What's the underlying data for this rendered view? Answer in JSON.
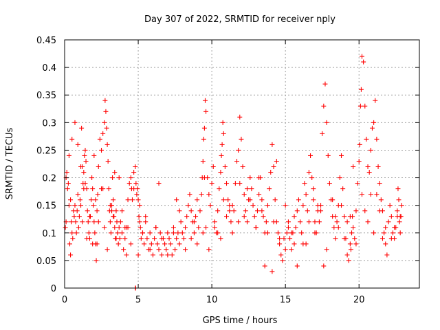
{
  "chart_data": {
    "type": "scatter",
    "title": "Day 307 of 2022, SRMTID for receiver nply",
    "xlabel": "GPS time / hours",
    "ylabel": "SRMTID / TECUs",
    "xlim": [
      0,
      24.1
    ],
    "ylim": [
      0,
      0.45
    ],
    "xticks": [
      0,
      5,
      10,
      15,
      20
    ],
    "xtick_labels": [
      "0",
      "5",
      "10",
      "15",
      "20"
    ],
    "yticks": [
      0,
      0.05,
      0.1,
      0.15,
      0.2,
      0.25,
      0.3,
      0.35,
      0.4,
      0.45
    ],
    "ytick_labels": [
      "0",
      "0.05",
      "0.1",
      "0.15",
      "0.2",
      "0.25",
      "0.3",
      "0.35",
      "0.4",
      "0.45"
    ],
    "grid": true,
    "marker": "+",
    "color": "#ff0000",
    "series": [
      {
        "name": "SRMTID",
        "x": [
          0.05,
          0.1,
          0.15,
          0.2,
          0.25,
          0.3,
          0.35,
          0.4,
          0.45,
          0.5,
          0.55,
          0.6,
          0.65,
          0.7,
          0.75,
          0.8,
          0.85,
          0.9,
          0.95,
          1.0,
          1.05,
          1.1,
          1.15,
          1.2,
          1.25,
          1.3,
          1.35,
          1.4,
          1.45,
          1.5,
          1.55,
          1.6,
          1.65,
          1.7,
          1.75,
          1.8,
          1.85,
          1.9,
          1.95,
          2.0,
          2.05,
          2.1,
          2.15,
          2.2,
          2.25,
          2.3,
          2.4,
          2.5,
          2.6,
          2.7,
          2.75,
          2.8,
          2.85,
          2.9,
          2.95,
          3.0,
          3.05,
          3.1,
          3.15,
          3.2,
          3.25,
          3.3,
          3.35,
          3.4,
          3.45,
          3.5,
          3.55,
          3.6,
          3.65,
          3.7,
          3.75,
          3.8,
          3.9,
          4.0,
          4.1,
          4.2,
          4.3,
          4.4,
          4.5,
          4.55,
          4.6,
          4.7,
          4.8,
          4.85,
          4.9,
          4.95,
          5.0,
          5.05,
          5.1,
          5.15,
          5.2,
          5.3,
          5.4,
          5.5,
          5.6,
          5.7,
          5.8,
          5.9,
          6.0,
          6.1,
          6.2,
          6.3,
          6.4,
          6.5,
          6.6,
          6.7,
          6.8,
          6.9,
          7.0,
          7.1,
          7.2,
          7.3,
          7.4,
          7.5,
          7.6,
          7.7,
          7.8,
          7.9,
          8.0,
          8.1,
          8.2,
          8.3,
          8.4,
          8.5,
          8.6,
          8.7,
          8.8,
          8.9,
          9.0,
          9.1,
          9.2,
          9.3,
          9.35,
          9.4,
          9.45,
          9.5,
          9.55,
          9.6,
          9.7,
          9.8,
          9.9,
          10.0,
          10.1,
          10.2,
          10.3,
          10.4,
          10.5,
          10.6,
          10.65,
          10.7,
          10.75,
          10.8,
          10.9,
          11.0,
          11.1,
          11.2,
          11.3,
          11.4,
          11.5,
          11.6,
          11.7,
          11.8,
          11.9,
          12.0,
          12.1,
          12.2,
          12.3,
          12.4,
          12.5,
          12.6,
          12.7,
          12.8,
          12.9,
          13.0,
          13.1,
          13.2,
          13.3,
          13.4,
          13.5,
          13.6,
          13.7,
          13.8,
          13.9,
          14.0,
          14.1,
          14.2,
          14.3,
          14.4,
          14.5,
          14.6,
          14.7,
          14.8,
          14.9,
          15.0,
          15.1,
          15.2,
          15.3,
          15.4,
          15.5,
          15.6,
          15.7,
          15.8,
          15.9,
          16.0,
          16.1,
          16.2,
          16.3,
          16.4,
          16.5,
          16.6,
          16.7,
          16.8,
          16.9,
          17.0,
          17.1,
          17.2,
          17.3,
          17.4,
          17.5,
          17.6,
          17.7,
          17.8,
          17.9,
          18.0,
          18.1,
          18.2,
          18.3,
          18.4,
          18.5,
          18.6,
          18.7,
          18.8,
          18.9,
          19.0,
          19.1,
          19.2,
          19.3,
          19.4,
          19.45,
          19.5,
          19.55,
          19.6,
          19.7,
          19.8,
          19.9,
          20.0,
          20.05,
          20.1,
          20.15,
          20.2,
          20.3,
          20.4,
          20.5,
          20.6,
          20.7,
          20.8,
          20.9,
          21.0,
          21.1,
          21.2,
          21.3,
          21.4,
          21.5,
          21.6,
          21.7,
          21.8,
          21.9,
          22.0,
          22.1,
          22.2,
          22.3,
          22.4,
          22.5,
          22.6,
          22.65,
          22.7,
          22.75,
          22.8,
          22.85,
          22.9,
          0.1,
          0.3,
          0.5,
          0.7,
          0.9,
          1.1,
          1.3,
          1.5,
          1.7,
          1.9,
          2.1,
          2.3,
          2.5,
          2.7,
          2.9,
          3.1,
          3.3,
          3.5,
          3.7,
          3.9,
          4.1,
          4.3,
          4.5,
          4.7,
          5.1,
          5.3,
          5.5,
          5.8,
          6.2,
          6.6,
          7.0,
          7.4,
          7.8,
          8.2,
          8.6,
          9.0,
          9.4,
          9.8,
          10.2,
          10.6,
          11.0,
          11.4,
          11.8,
          12.2,
          12.6,
          13.0,
          13.4,
          13.8,
          14.2,
          14.6,
          15.0,
          15.4,
          15.8,
          16.2,
          16.6,
          17.0,
          17.4,
          17.8,
          18.2,
          18.6,
          19.0,
          19.4,
          19.8,
          20.2,
          20.6,
          21.0,
          21.4,
          21.8,
          22.2,
          22.6,
          0.4,
          1.2,
          2.2,
          3.2,
          4.2,
          5.0,
          6.4,
          7.6,
          8.8,
          9.6,
          10.4,
          11.2,
          12.4,
          13.2,
          14.4,
          15.2,
          16.4,
          17.2,
          18.4,
          19.2,
          20.4,
          21.2,
          22.4,
          4.8,
          4.82,
          1.4,
          2.0,
          2.6,
          3.4,
          9.5,
          10.8,
          11.9,
          13.6,
          14.1,
          15.6,
          16.9,
          17.6,
          18.8,
          19.6,
          20.8,
          21.6,
          22.8
        ],
        "y": [
          0.11,
          0.12,
          0.21,
          0.18,
          0.19,
          0.15,
          0.08,
          0.06,
          0.12,
          0.1,
          0.09,
          0.14,
          0.13,
          0.15,
          0.12,
          0.1,
          0.14,
          0.17,
          0.11,
          0.13,
          0.16,
          0.15,
          0.29,
          0.22,
          0.19,
          0.21,
          0.24,
          0.25,
          0.23,
          0.18,
          0.14,
          0.12,
          0.1,
          0.09,
          0.13,
          0.16,
          0.2,
          0.18,
          0.15,
          0.12,
          0.1,
          0.08,
          0.05,
          0.14,
          0.17,
          0.22,
          0.27,
          0.25,
          0.28,
          0.3,
          0.34,
          0.32,
          0.29,
          0.26,
          0.23,
          0.18,
          0.14,
          0.12,
          0.1,
          0.15,
          0.2,
          0.16,
          0.13,
          0.11,
          0.09,
          0.14,
          0.12,
          0.1,
          0.08,
          0.11,
          0.09,
          0.12,
          0.1,
          0.07,
          0.09,
          0.06,
          0.11,
          0.19,
          0.2,
          0.18,
          0.16,
          0.21,
          0.22,
          0.19,
          0.17,
          0.18,
          0.16,
          0.13,
          0.15,
          0.11,
          0.09,
          0.1,
          0.08,
          0.12,
          0.09,
          0.07,
          0.1,
          0.08,
          0.06,
          0.09,
          0.11,
          0.08,
          0.07,
          0.1,
          0.06,
          0.09,
          0.08,
          0.07,
          0.1,
          0.09,
          0.08,
          0.06,
          0.11,
          0.07,
          0.09,
          0.1,
          0.08,
          0.12,
          0.1,
          0.09,
          0.11,
          0.13,
          0.15,
          0.17,
          0.14,
          0.12,
          0.1,
          0.13,
          0.16,
          0.11,
          0.14,
          0.17,
          0.2,
          0.23,
          0.27,
          0.29,
          0.34,
          0.32,
          0.2,
          0.17,
          0.15,
          0.19,
          0.22,
          0.12,
          0.1,
          0.14,
          0.18,
          0.21,
          0.24,
          0.26,
          0.3,
          0.28,
          0.22,
          0.19,
          0.16,
          0.14,
          0.12,
          0.1,
          0.14,
          0.19,
          0.23,
          0.25,
          0.31,
          0.27,
          0.22,
          0.17,
          0.14,
          0.12,
          0.16,
          0.2,
          0.18,
          0.15,
          0.13,
          0.11,
          0.14,
          0.17,
          0.2,
          0.16,
          0.13,
          0.1,
          0.12,
          0.15,
          0.18,
          0.21,
          0.26,
          0.22,
          0.16,
          0.12,
          0.1,
          0.08,
          0.06,
          0.05,
          0.09,
          0.07,
          0.1,
          0.12,
          0.09,
          0.07,
          0.1,
          0.13,
          0.11,
          0.14,
          0.16,
          0.12,
          0.1,
          0.15,
          0.19,
          0.17,
          0.14,
          0.21,
          0.24,
          0.2,
          0.16,
          0.12,
          0.1,
          0.14,
          0.12,
          0.15,
          0.28,
          0.33,
          0.37,
          0.3,
          0.24,
          0.19,
          0.16,
          0.13,
          0.11,
          0.09,
          0.12,
          0.15,
          0.2,
          0.24,
          0.18,
          0.13,
          0.09,
          0.06,
          0.05,
          0.08,
          0.07,
          0.1,
          0.13,
          0.11,
          0.09,
          0.14,
          0.19,
          0.23,
          0.26,
          0.33,
          0.36,
          0.42,
          0.41,
          0.33,
          0.27,
          0.22,
          0.21,
          0.25,
          0.29,
          0.3,
          0.34,
          0.27,
          0.22,
          0.19,
          0.16,
          0.14,
          0.1,
          0.08,
          0.06,
          0.12,
          0.15,
          0.13,
          0.1,
          0.09,
          0.11,
          0.14,
          0.18,
          0.16,
          0.12,
          0.1,
          0.13,
          0.15,
          0.2,
          0.24,
          0.27,
          0.3,
          0.26,
          0.22,
          0.18,
          0.09,
          0.13,
          0.08,
          0.16,
          0.12,
          0.18,
          0.11,
          0.07,
          0.15,
          0.13,
          0.09,
          0.2,
          0.14,
          0.11,
          0.16,
          0.08,
          0.18,
          0.12,
          0.1,
          0.13,
          0.07,
          0.11,
          0.09,
          0.06,
          0.1,
          0.14,
          0.07,
          0.09,
          0.08,
          0.1,
          0.07,
          0.11,
          0.09,
          0.13,
          0.15,
          0.12,
          0.13,
          0.16,
          0.11,
          0.14,
          0.1,
          0.12,
          0.09,
          0.15,
          0.1,
          0.04,
          0.08,
          0.12,
          0.1,
          0.14,
          0.07,
          0.16,
          0.11,
          0.09,
          0.13,
          0.08,
          0.17,
          0.12,
          0.1,
          0.14,
          0.11,
          0.09,
          0.13,
          0.16,
          0.12,
          0.08,
          0.14,
          0.11,
          0.06,
          0.19,
          0.16,
          0.12,
          0.11,
          0.1,
          0.15,
          0.18,
          0.2,
          0.23,
          0.11,
          0.08,
          0.15,
          0.13,
          0.12,
          0.14,
          0.17,
          0.11,
          0.0,
          0.0,
          0.19,
          0.24,
          0.18,
          0.21,
          0.2,
          0.16,
          0.19,
          0.04,
          0.03,
          0.08,
          0.18,
          0.04,
          0.15,
          0.22,
          0.17,
          0.09,
          0.13
        ]
      }
    ]
  }
}
